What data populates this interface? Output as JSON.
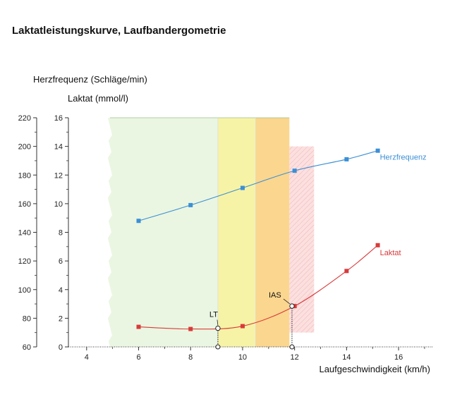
{
  "title": "Laktatleistungskurve, Laufbandergometrie",
  "chart_data": {
    "type": "line",
    "xlabel": "Laufgeschwindigkeit (km/h)",
    "ylabel_outer": "Herzfrequenz (Schläge/min)",
    "ylabel_inner": "Laktat (mmol/l)",
    "xlim": [
      3.3,
      17.3
    ],
    "xticks": [
      4,
      6,
      8,
      10,
      12,
      14,
      16
    ],
    "hr_ylim": [
      60,
      220
    ],
    "hr_ticks": [
      60,
      80,
      100,
      120,
      140,
      160,
      180,
      200,
      220
    ],
    "lactate_ylim": [
      0,
      16
    ],
    "lactate_ticks": [
      0,
      2,
      4,
      6,
      8,
      10,
      12,
      14,
      16
    ],
    "series": [
      {
        "name": "Herzfrequenz",
        "axis": "hr",
        "color": "#3b8fd6",
        "x": [
          6,
          8,
          10,
          12,
          14,
          15.2
        ],
        "y": [
          148,
          159,
          171,
          183,
          191,
          197
        ]
      },
      {
        "name": "Laktat",
        "axis": "lactate",
        "color": "#d93a3a",
        "x": [
          6,
          8,
          10,
          12,
          14,
          15.2
        ],
        "y": [
          1.4,
          1.25,
          1.45,
          2.85,
          5.3,
          7.1
        ]
      }
    ],
    "zones": [
      {
        "x0": 4.9,
        "x1": 9.05,
        "color": "#eaf6e1",
        "top": 16
      },
      {
        "x0": 9.05,
        "x1": 10.5,
        "color": "#f7f3a6",
        "top": 16
      },
      {
        "x0": 10.5,
        "x1": 11.8,
        "color": "#fbd68e",
        "top": 16
      },
      {
        "x0": 11.8,
        "x1": 12.75,
        "color": "#fbe0e0",
        "top": 14,
        "bottom": 1,
        "hatched": true
      }
    ],
    "thresholds": [
      {
        "label": "LT",
        "x": 9.05,
        "lactate": 1.3
      },
      {
        "label": "IAS",
        "x": 11.9,
        "lactate": 2.85
      }
    ]
  }
}
